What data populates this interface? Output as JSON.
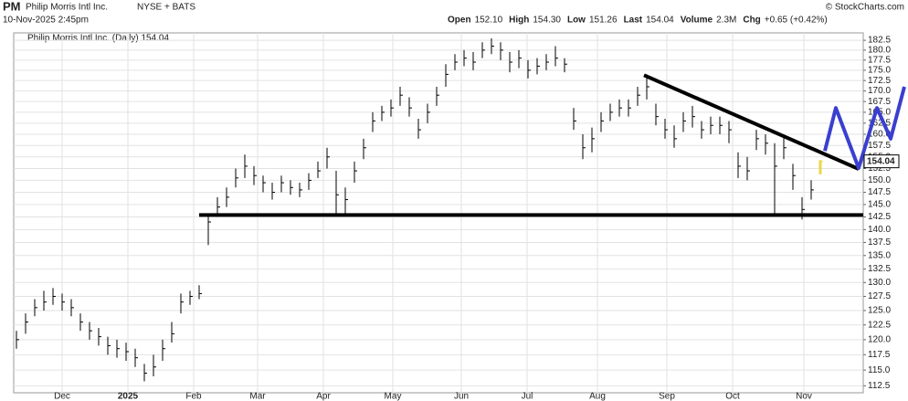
{
  "chart_data": {
    "type": "ohlc",
    "symbol": "PM",
    "name": "Philip Morris Intl Inc.",
    "exchange": "NYSE + BATS",
    "timestamp": "10-Nov-2025 2:45pm",
    "credit": "© StockCharts.com",
    "quote": [
      {
        "label": "Open",
        "value": "152.10"
      },
      {
        "label": "High",
        "value": "154.30"
      },
      {
        "label": "Low",
        "value": "151.26"
      },
      {
        "label": "Last",
        "value": "154.04"
      },
      {
        "label": "Volume",
        "value": "2.3M"
      },
      {
        "label": "Chg",
        "value": "+0.65 (+0.42%)"
      }
    ],
    "legend": "Philip Morris Intl Inc. (Daily) 154.04",
    "last_label": "154.04",
    "last_value": 154.04,
    "log_scale": true,
    "grid": true,
    "bar_color": "#000000",
    "last_bar_color": "#e8d84a",
    "xlim": [
      -0.3,
      92.7
    ],
    "xticks": [
      {
        "value": 5,
        "label": "Dec"
      },
      {
        "value": 12.2,
        "label": "2025"
      },
      {
        "value": 19.4,
        "label": "Feb"
      },
      {
        "value": 26.4,
        "label": "Mar"
      },
      {
        "value": 33.6,
        "label": "Apr"
      },
      {
        "value": 41.2,
        "label": "May"
      },
      {
        "value": 48.7,
        "label": "Jun"
      },
      {
        "value": 55.9,
        "label": "Jul"
      },
      {
        "value": 63.6,
        "label": "Aug"
      },
      {
        "value": 71.2,
        "label": "Sep"
      },
      {
        "value": 78.4,
        "label": "Oct"
      },
      {
        "value": 86.2,
        "label": "Nov"
      }
    ],
    "ylim": [
      111.4,
      184.4
    ],
    "yticks": [
      112.5,
      {
        "value": 115,
        "label": "115.0"
      },
      117.5,
      {
        "value": 120,
        "label": "120.0"
      },
      122.5,
      {
        "value": 125,
        "label": "125.0"
      },
      127.5,
      {
        "value": 130,
        "label": "130.0"
      },
      132.5,
      {
        "value": 135,
        "label": "135.0"
      },
      137.5,
      {
        "value": 140,
        "label": "140.0"
      },
      142.5,
      {
        "value": 145,
        "label": "145.0"
      },
      147.5,
      {
        "value": 150,
        "label": "150.0"
      },
      152.5,
      {
        "value": 155,
        "label": "155.0"
      },
      157.5,
      {
        "value": 160,
        "label": "160.0"
      },
      162.5,
      {
        "value": 165,
        "label": "165.0"
      },
      167.5,
      {
        "value": 170,
        "label": "170.0"
      },
      172.5,
      {
        "value": 175,
        "label": "175.0"
      },
      177.5,
      {
        "value": 180,
        "label": "180.0"
      },
      182.5
    ],
    "high": [
      121.5,
      124.5,
      127,
      128.5,
      129,
      128,
      127,
      124.5,
      123,
      122,
      120.5,
      120,
      119.5,
      118.5,
      116,
      117.5,
      120,
      123,
      128,
      128.5,
      129.5,
      143,
      146.5,
      148.5,
      152.5,
      155.5,
      153,
      151,
      149.5,
      151,
      150,
      149.5,
      151.5,
      154,
      157,
      152,
      148.5,
      154,
      159,
      165,
      166.5,
      168,
      171,
      168.5,
      163.5,
      167,
      171,
      176.5,
      179,
      180,
      179.5,
      182,
      183,
      182,
      179.5,
      180,
      177.5,
      178,
      179,
      181,
      178,
      166,
      160,
      161.5,
      165,
      167,
      168,
      168,
      171,
      174,
      167,
      163.5,
      162,
      165,
      166.5,
      163,
      164,
      164,
      163,
      156,
      155,
      161,
      160,
      158,
      159.5,
      153.5,
      146.5,
      150,
      154.3
    ],
    "low": [
      118.5,
      121,
      124,
      125,
      126,
      125,
      124,
      121.5,
      120,
      119,
      117.5,
      117,
      116.5,
      115.5,
      113.2,
      114,
      116.5,
      119.5,
      124.5,
      126,
      127,
      137,
      142.5,
      144.5,
      148.5,
      150.5,
      149,
      147.5,
      146,
      147.5,
      147,
      146.5,
      148,
      150.5,
      152.5,
      143,
      143,
      149.5,
      154.5,
      160.5,
      163,
      164,
      166.5,
      164,
      159,
      162.5,
      166.5,
      171,
      175,
      176,
      175,
      178,
      179,
      177.5,
      174.5,
      175.5,
      173,
      174,
      175,
      176,
      174.5,
      161,
      154.5,
      156,
      160.5,
      163,
      164,
      164,
      166.5,
      168,
      162,
      159,
      157,
      160.5,
      161.5,
      159,
      160,
      160,
      158,
      150.5,
      150,
      156.5,
      155.5,
      143,
      154.5,
      148,
      142,
      146,
      151.26
    ],
    "close": [
      120,
      123,
      125.5,
      126.5,
      127.5,
      126.5,
      125.5,
      123,
      121.5,
      120.5,
      119,
      118.5,
      118,
      117,
      114.5,
      115.5,
      118.5,
      121,
      126.5,
      127.5,
      128,
      141.5,
      144.5,
      146.5,
      150.5,
      153,
      151,
      149.5,
      147.5,
      149.5,
      148.5,
      148,
      150,
      152,
      155,
      147,
      146,
      152,
      157,
      163,
      165,
      166,
      169,
      166,
      161,
      165,
      169,
      174,
      177,
      178,
      177,
      180,
      181,
      180,
      177,
      178,
      175,
      176,
      177,
      178,
      176.5,
      163,
      157,
      159,
      163,
      165,
      166,
      166,
      169,
      171,
      164,
      161,
      159,
      163,
      164,
      161,
      162,
      162,
      161,
      153,
      152,
      159,
      158,
      153,
      157,
      151,
      144,
      148,
      154.04
    ],
    "drawings": [
      {
        "color": "#000000",
        "points": [
          [
            20,
            142.9
          ],
          [
            92.7,
            142.9
          ]
        ]
      },
      {
        "color": "#000000",
        "points": [
          [
            68.7,
            173.8
          ],
          [
            92.2,
            152.4
          ]
        ]
      },
      {
        "color": "#3a3fd0",
        "points": [
          [
            88.5,
            156.3
          ],
          [
            89.7,
            166
          ],
          [
            92.2,
            152.6
          ],
          [
            94.2,
            166
          ],
          [
            95.7,
            159
          ],
          [
            97.2,
            171
          ]
        ]
      }
    ]
  }
}
